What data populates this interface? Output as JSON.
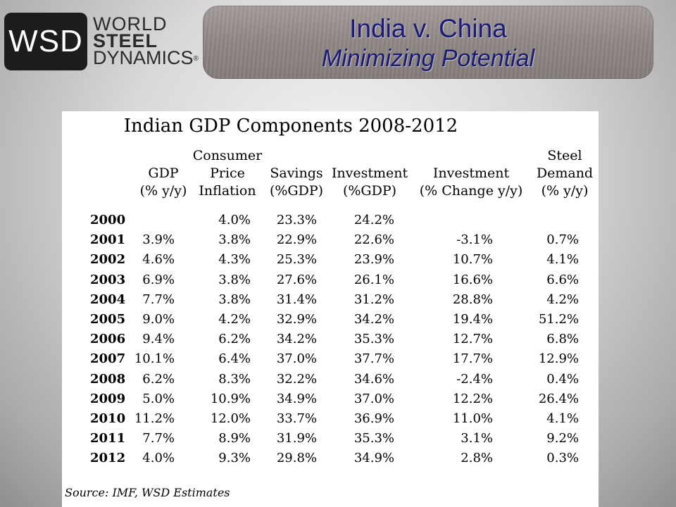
{
  "logo": {
    "abbr": "WSD",
    "line1": "WORLD",
    "line2": "STEEL",
    "line3": "DYNAMICS",
    "reg": "®"
  },
  "banner": {
    "title": "India v. China",
    "subtitle": "Minimizing Potential"
  },
  "table": {
    "title": "Indian GDP Components 2008-2012",
    "headers": [
      "GDP\n(% y/y)",
      "Consumer\nPrice\nInflation",
      "Savings\n(%GDP)",
      "Investment\n(%GDP)",
      "Investment\n(% Change y/y)",
      "Steel\nDemand\n(% y/y)"
    ],
    "rows": [
      {
        "year": "2000",
        "cells": [
          "",
          "4.0%",
          "23.3%",
          "24.2%",
          "",
          ""
        ]
      },
      {
        "year": "2001",
        "cells": [
          "3.9%",
          "3.8%",
          "22.9%",
          "22.6%",
          "-3.1%",
          "0.7%"
        ]
      },
      {
        "year": "2002",
        "cells": [
          "4.6%",
          "4.3%",
          "25.3%",
          "23.9%",
          "10.7%",
          "4.1%"
        ]
      },
      {
        "year": "2003",
        "cells": [
          "6.9%",
          "3.8%",
          "27.6%",
          "26.1%",
          "16.6%",
          "6.6%"
        ]
      },
      {
        "year": "2004",
        "cells": [
          "7.7%",
          "3.8%",
          "31.4%",
          "31.2%",
          "28.8%",
          "4.2%"
        ]
      },
      {
        "year": "2005",
        "cells": [
          "9.0%",
          "4.2%",
          "32.9%",
          "34.2%",
          "19.4%",
          "51.2%"
        ]
      },
      {
        "year": "2006",
        "cells": [
          "9.4%",
          "6.2%",
          "34.2%",
          "35.3%",
          "12.7%",
          "6.8%"
        ]
      },
      {
        "year": "2007",
        "cells": [
          "10.1%",
          "6.4%",
          "37.0%",
          "37.7%",
          "17.7%",
          "12.9%"
        ]
      },
      {
        "year": "2008",
        "cells": [
          "6.2%",
          "8.3%",
          "32.2%",
          "34.6%",
          "-2.4%",
          "0.4%"
        ]
      },
      {
        "year": "2009",
        "cells": [
          "5.0%",
          "10.9%",
          "34.9%",
          "37.0%",
          "12.2%",
          "26.4%"
        ]
      },
      {
        "year": "2010",
        "cells": [
          "11.2%",
          "12.0%",
          "33.7%",
          "36.9%",
          "11.0%",
          "4.1%"
        ]
      },
      {
        "year": "2011",
        "cells": [
          "7.7%",
          "8.9%",
          "31.9%",
          "35.3%",
          "3.1%",
          "9.2%"
        ]
      },
      {
        "year": "2012",
        "cells": [
          "4.0%",
          "9.3%",
          "29.8%",
          "34.9%",
          "2.8%",
          "0.3%"
        ]
      }
    ],
    "source": "Source: IMF, WSD Estimates"
  }
}
